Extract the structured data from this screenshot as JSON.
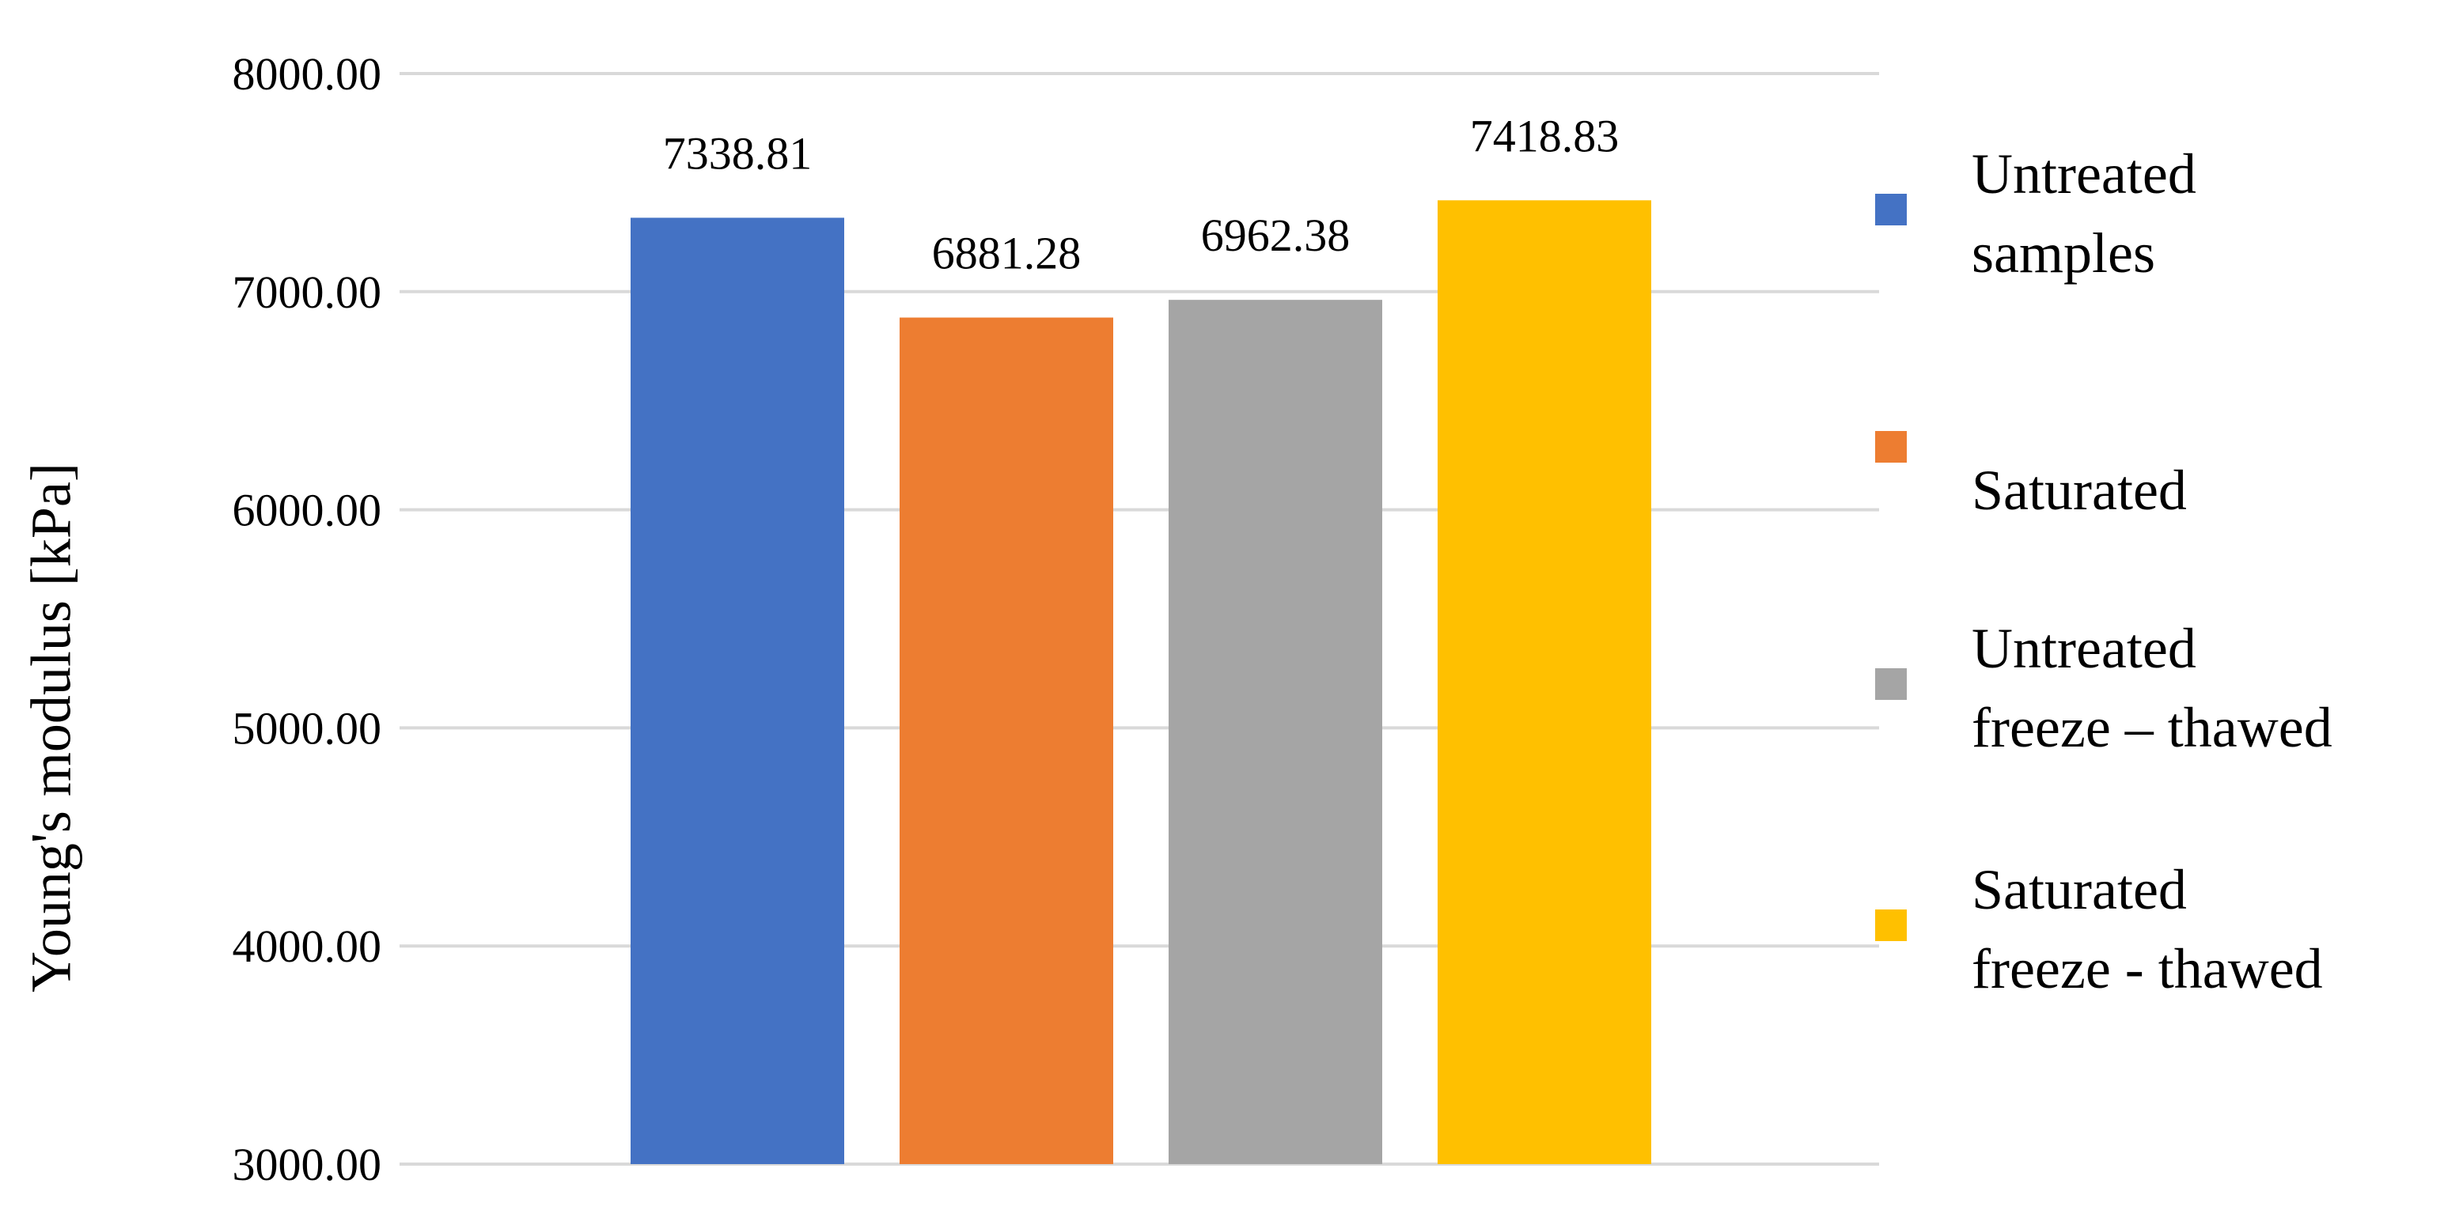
{
  "chart_data": {
    "type": "bar",
    "title": "",
    "xlabel": "",
    "ylabel": "Young's modulus [kPa]",
    "ylim": [
      3000,
      8000
    ],
    "yticks": [
      "3000.00",
      "4000.00",
      "5000.00",
      "6000.00",
      "7000.00",
      "8000.00"
    ],
    "grid": true,
    "legend_position": "right",
    "categories": [
      "Untreated samples",
      "Saturated",
      "Untreated freeze – thawed",
      "Saturated freeze - thawed"
    ],
    "values": [
      7338.81,
      6881.28,
      6962.38,
      7418.83
    ],
    "value_labels": [
      "7338.81",
      "6881.28",
      "6962.38",
      "7418.83"
    ],
    "colors": [
      "#4472C4",
      "#ED7D31",
      "#A5A5A5",
      "#FFC000"
    ]
  },
  "legend": [
    {
      "line1": "Untreated",
      "line2": "samples",
      "color": "#4472C4"
    },
    {
      "line1": "",
      "line2": "Saturated",
      "color": "#ED7D31"
    },
    {
      "line1": "Untreated",
      "line2": "freeze – thawed",
      "color": "#A5A5A5"
    },
    {
      "line1": "Saturated",
      "line2": "freeze - thawed",
      "color": "#FFC000"
    }
  ]
}
